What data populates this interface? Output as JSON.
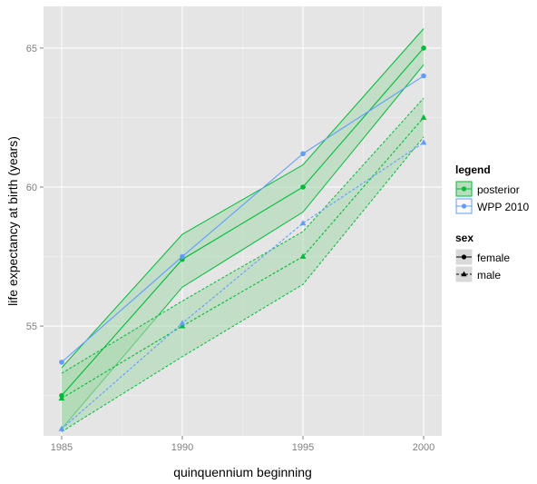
{
  "chart_data": {
    "type": "line",
    "xlabel": "quinquennium beginning",
    "ylabel": "life expectancy at birth (years)",
    "xlim": [
      1984.25,
      2000.75
    ],
    "ylim": [
      51.05,
      66.5
    ],
    "x_ticks": [
      1985,
      1990,
      1995,
      2000
    ],
    "y_ticks": [
      55,
      60,
      65
    ],
    "x_minor": [
      1987.5,
      1992.5,
      1997.5
    ],
    "y_minor": [
      52.5,
      57.5,
      62.5
    ],
    "grid": true,
    "legend_position": "right",
    "colors": {
      "posterior": "#00ba38",
      "wpp": "#619cff",
      "panel": "#e5e5e5",
      "grid": "#ffffff",
      "band_fill": "#a8d8ad"
    },
    "legend": {
      "color_title": "legend",
      "color_items": [
        "posterior",
        "WPP 2010"
      ],
      "shape_title": "sex",
      "shape_items": [
        "female",
        "male"
      ]
    },
    "x": [
      1985,
      1990,
      1995,
      2000
    ],
    "series": [
      {
        "name": "posterior",
        "sex": "female",
        "marker": "circle",
        "line": "solid",
        "values": [
          52.5,
          57.4,
          60.0,
          65.0
        ],
        "lower": [
          51.3,
          56.4,
          59.1,
          64.4
        ],
        "upper": [
          53.5,
          58.3,
          60.8,
          65.7
        ]
      },
      {
        "name": "posterior",
        "sex": "male",
        "marker": "triangle",
        "line": "dashed",
        "values": [
          52.4,
          55.0,
          57.5,
          62.5
        ],
        "lower": [
          51.2,
          53.9,
          56.5,
          61.8
        ],
        "upper": [
          53.3,
          55.9,
          58.4,
          63.2
        ]
      },
      {
        "name": "WPP 2010",
        "sex": "female",
        "marker": "circle",
        "line": "solid",
        "values": [
          53.7,
          57.5,
          61.2,
          64.0
        ]
      },
      {
        "name": "WPP 2010",
        "sex": "male",
        "marker": "triangle",
        "line": "dashed",
        "values": [
          51.3,
          55.1,
          58.7,
          61.6
        ]
      }
    ]
  }
}
